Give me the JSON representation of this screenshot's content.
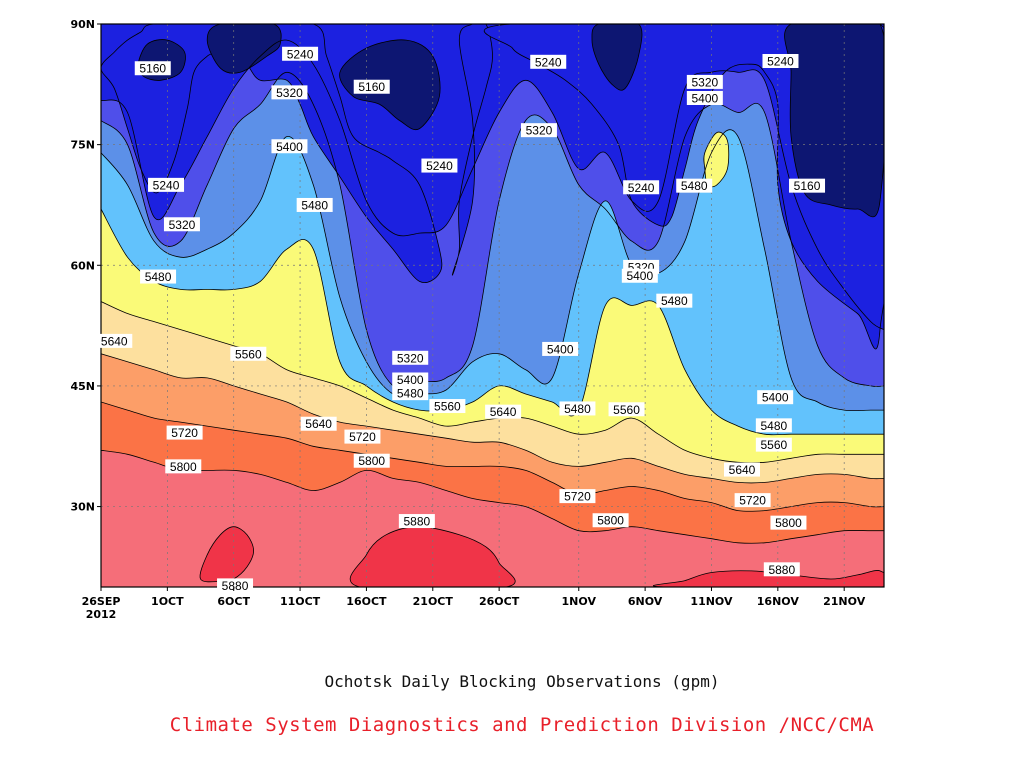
{
  "chart_data": {
    "type": "contour",
    "title": "Ochotsk Daily Blocking Observations (gpm)",
    "credit": "Climate System Diagnostics and Prediction Division /NCC/CMA",
    "credit_color": "#e8202a",
    "x_axis": {
      "range_days": [
        0,
        59
      ],
      "ticks": [
        {
          "label": "26SEP",
          "sub": "2012",
          "day": 0
        },
        {
          "label": "1OCT",
          "day": 5
        },
        {
          "label": "6OCT",
          "day": 10
        },
        {
          "label": "11OCT",
          "day": 15
        },
        {
          "label": "16OCT",
          "day": 20
        },
        {
          "label": "21OCT",
          "day": 25
        },
        {
          "label": "26OCT",
          "day": 30
        },
        {
          "label": "1NOV",
          "day": 36
        },
        {
          "label": "6NOV",
          "day": 41
        },
        {
          "label": "11NOV",
          "day": 46
        },
        {
          "label": "16NOV",
          "day": 51
        },
        {
          "label": "21NOV",
          "day": 56
        }
      ]
    },
    "y_axis": {
      "range": [
        20,
        90
      ],
      "ticks": [
        {
          "label": "30N",
          "value": 30
        },
        {
          "label": "45N",
          "value": 45
        },
        {
          "label": "60N",
          "value": 60
        },
        {
          "label": "75N",
          "value": 75
        },
        {
          "label": "90N",
          "value": 90
        }
      ]
    },
    "grid": "dotted",
    "contour_levels": [
      5240,
      5320,
      5400,
      5480,
      5560,
      5640,
      5720,
      5800,
      5880
    ],
    "fill_colors": [
      "#0d1672",
      "#1c21e0",
      "#4f4fea",
      "#5c90e8",
      "#62c2fc",
      "#fafa78",
      "#fde09e",
      "#fc9e68",
      "#fb7346",
      "#f56e79",
      "#f03448"
    ],
    "level_lats": {
      "days": [
        0,
        2,
        4,
        6,
        8,
        10,
        12,
        14,
        16,
        18,
        20,
        22,
        24,
        26,
        28,
        30,
        32,
        34,
        36,
        38,
        40,
        42,
        44,
        46,
        48,
        50,
        52,
        54,
        56,
        58,
        59
      ],
      "5320": [
        80.5,
        79,
        66,
        70,
        76,
        82,
        86,
        88,
        85,
        78,
        68,
        64,
        64,
        65,
        72,
        79,
        83,
        79,
        72,
        74,
        68,
        68,
        82,
        84,
        84,
        83,
        70,
        62,
        57,
        53,
        52
      ],
      "5400": [
        78,
        75,
        64,
        63,
        70,
        77,
        80,
        84,
        80,
        70,
        52,
        45,
        45.5,
        46,
        50,
        68,
        78,
        77,
        70,
        67,
        63,
        63,
        76,
        80,
        79,
        79,
        63,
        50,
        46,
        45,
        45
      ],
      "5480": [
        74,
        70,
        63,
        61,
        62,
        64,
        68,
        76,
        70,
        56,
        48,
        44,
        44,
        44.5,
        48,
        49,
        47,
        46,
        59,
        68,
        60,
        59,
        63,
        74,
        76,
        62,
        46,
        43,
        42,
        42,
        42
      ],
      "5560": [
        67,
        61,
        58,
        57,
        57,
        57,
        58,
        62,
        62,
        48,
        45,
        43,
        42,
        42,
        43,
        45,
        44,
        43,
        42,
        55,
        55,
        55,
        47,
        42,
        40,
        39,
        39,
        39,
        39,
        39,
        39
      ],
      "5640": [
        55.5,
        54,
        53,
        52,
        51,
        50,
        49,
        47,
        46,
        45,
        43.5,
        42,
        41,
        40,
        40.5,
        41,
        41,
        40,
        39,
        39.5,
        41,
        39,
        37,
        36,
        35.5,
        35.5,
        36,
        36.5,
        36.5,
        36.5,
        36.5
      ],
      "5720": [
        49,
        48,
        47,
        46,
        46,
        45,
        44,
        43,
        41.5,
        40.5,
        40,
        39.5,
        39,
        38.5,
        38,
        38,
        37,
        35.5,
        35,
        35.5,
        36,
        35,
        34,
        33.5,
        33,
        33,
        33.5,
        34,
        34,
        33.5,
        33.5
      ],
      "5800": [
        43,
        42,
        41,
        40.5,
        40,
        39.5,
        39,
        38.5,
        37.5,
        37,
        36.5,
        36,
        35.5,
        35,
        35,
        35,
        34.5,
        33,
        31.5,
        32,
        32.5,
        32,
        31,
        30.5,
        29.5,
        29.5,
        30,
        30.5,
        30.5,
        30,
        30
      ],
      "5880": [
        37,
        36.5,
        35.5,
        34.5,
        34.5,
        34.5,
        34,
        33,
        32,
        33,
        34.5,
        33.5,
        33,
        32,
        31,
        30.5,
        30,
        28.5,
        27,
        27,
        27.5,
        27,
        26.5,
        26,
        25.5,
        25.5,
        26,
        26.5,
        27,
        27,
        27
      ]
    },
    "lows_5240": [
      [
        [
          0,
          84.5
        ],
        [
          1,
          86.5
        ],
        [
          2,
          88
        ],
        [
          3,
          89
        ],
        [
          4,
          90
        ],
        [
          9,
          90
        ],
        [
          9,
          87
        ],
        [
          8,
          86
        ],
        [
          7,
          84
        ],
        [
          6.5,
          79.5
        ],
        [
          5.5,
          73
        ],
        [
          4.2,
          69
        ],
        [
          3,
          72
        ],
        [
          2,
          77
        ],
        [
          1,
          82
        ]
      ],
      [
        [
          10,
          90
        ],
        [
          16,
          90
        ],
        [
          17,
          86
        ],
        [
          18,
          81
        ],
        [
          19,
          76
        ],
        [
          21,
          74
        ],
        [
          22,
          73
        ],
        [
          24,
          70
        ],
        [
          25.5,
          62
        ],
        [
          25.5,
          59
        ],
        [
          24,
          58
        ],
        [
          22,
          62
        ],
        [
          20,
          66
        ],
        [
          18,
          71
        ],
        [
          16,
          76
        ],
        [
          15,
          80
        ],
        [
          14,
          83
        ],
        [
          12,
          83
        ],
        [
          11,
          85
        ],
        [
          10,
          87
        ]
      ],
      [
        [
          27,
          88
        ],
        [
          28,
          90
        ],
        [
          29,
          90
        ],
        [
          29.5,
          86
        ],
        [
          29,
          82
        ],
        [
          28,
          76
        ],
        [
          27,
          68
        ],
        [
          27,
          62
        ],
        [
          26.5,
          59
        ],
        [
          28,
          68
        ],
        [
          28,
          78
        ]
      ],
      [
        [
          31,
          90
        ],
        [
          58.7,
          90
        ],
        [
          58.7,
          52
        ],
        [
          57,
          54
        ],
        [
          54,
          58
        ],
        [
          52,
          63
        ],
        [
          51,
          70
        ],
        [
          51,
          80
        ],
        [
          50,
          84
        ],
        [
          49,
          85
        ],
        [
          47,
          84
        ],
        [
          45,
          78
        ],
        [
          44,
          72
        ],
        [
          43,
          66
        ],
        [
          42,
          65
        ],
        [
          40,
          68
        ],
        [
          39,
          75
        ],
        [
          37,
          80
        ],
        [
          35,
          83
        ],
        [
          33,
          85
        ],
        [
          31,
          87
        ]
      ]
    ],
    "lows_5160": [
      [
        [
          2.8,
          85
        ],
        [
          3.5,
          87.5
        ],
        [
          5,
          88
        ],
        [
          6.3,
          86.5
        ],
        [
          6,
          84
        ],
        [
          4.5,
          83
        ],
        [
          3.2,
          83.5
        ]
      ],
      [
        [
          8,
          88
        ],
        [
          9,
          90
        ],
        [
          13,
          90
        ],
        [
          13.5,
          87.5
        ],
        [
          12.5,
          86
        ],
        [
          10.5,
          84
        ],
        [
          9,
          84.5
        ]
      ],
      [
        [
          18,
          84
        ],
        [
          20,
          87
        ],
        [
          23,
          88
        ],
        [
          25,
          86
        ],
        [
          25.5,
          81
        ],
        [
          24,
          77
        ],
        [
          22.5,
          78
        ],
        [
          21,
          80
        ],
        [
          19,
          81
        ]
      ],
      [
        [
          37,
          88
        ],
        [
          37.5,
          90
        ],
        [
          40.5,
          90
        ],
        [
          40.5,
          86
        ],
        [
          39.5,
          82
        ],
        [
          38.5,
          82.5
        ],
        [
          37.5,
          85
        ]
      ],
      [
        [
          52,
          90
        ],
        [
          58.7,
          90
        ],
        [
          58.7,
          68
        ],
        [
          57,
          67
        ],
        [
          55,
          67.5
        ],
        [
          53,
          69
        ],
        [
          52,
          76
        ],
        [
          52,
          84
        ]
      ]
    ],
    "high_5480_bubble": [
      [
        45.5,
        72
      ],
      [
        45.5,
        74
      ],
      [
        46.4,
        76.5
      ],
      [
        47.2,
        75.5
      ],
      [
        47.2,
        72
      ],
      [
        46.4,
        70
      ],
      [
        45.7,
        70
      ]
    ],
    "high_5960_pockets": [
      [
        [
          7.5,
          21
        ],
        [
          8,
          24
        ],
        [
          9,
          26.5
        ],
        [
          10,
          27.5
        ],
        [
          11,
          26.5
        ],
        [
          11.5,
          24.5
        ],
        [
          11,
          22.5
        ],
        [
          10,
          21
        ],
        [
          9,
          20.7
        ]
      ],
      [
        [
          19.5,
          20
        ],
        [
          20,
          24
        ],
        [
          21.5,
          26.5
        ],
        [
          24,
          27.5
        ],
        [
          27,
          26.5
        ],
        [
          29,
          25
        ],
        [
          30,
          23
        ],
        [
          30.5,
          20
        ]
      ],
      [
        [
          42.5,
          20
        ],
        [
          44,
          20.8
        ],
        [
          46,
          21.8
        ],
        [
          49,
          22
        ],
        [
          52,
          21.5
        ],
        [
          55,
          21
        ],
        [
          57,
          21.5
        ],
        [
          58.7,
          22
        ],
        [
          58.7,
          20
        ]
      ]
    ],
    "contour_labels": [
      {
        "text": "5160",
        "day": 3.9,
        "lat": 84.5
      },
      {
        "text": "5240",
        "day": 15,
        "lat": 86.3
      },
      {
        "text": "5320",
        "day": 14.2,
        "lat": 81.5
      },
      {
        "text": "5160",
        "day": 20.4,
        "lat": 82.2
      },
      {
        "text": "5240",
        "day": 33.7,
        "lat": 85.3
      },
      {
        "text": "5320",
        "day": 45.5,
        "lat": 82.8
      },
      {
        "text": "5240",
        "day": 51.2,
        "lat": 85.4
      },
      {
        "text": "5400",
        "day": 45.5,
        "lat": 80.8
      },
      {
        "text": "5320",
        "day": 33,
        "lat": 76.8
      },
      {
        "text": "5400",
        "day": 14.2,
        "lat": 74.8
      },
      {
        "text": "5240",
        "day": 25.5,
        "lat": 72.4
      },
      {
        "text": "5240",
        "day": 4.9,
        "lat": 70
      },
      {
        "text": "5240",
        "day": 40.7,
        "lat": 69.7
      },
      {
        "text": "5480",
        "day": 44.7,
        "lat": 69.9
      },
      {
        "text": "5160",
        "day": 53.2,
        "lat": 69.9
      },
      {
        "text": "5480",
        "day": 16.1,
        "lat": 67.5
      },
      {
        "text": "5320",
        "day": 6.1,
        "lat": 65.1
      },
      {
        "text": "5320",
        "day": 40.7,
        "lat": 59.8
      },
      {
        "text": "5400",
        "day": 40.6,
        "lat": 58.7
      },
      {
        "text": "5480",
        "day": 4.3,
        "lat": 58.6
      },
      {
        "text": "5480",
        "day": 43.2,
        "lat": 55.6
      },
      {
        "text": "5640",
        "day": 1,
        "lat": 50.6
      },
      {
        "text": "5400",
        "day": 34.6,
        "lat": 49.6
      },
      {
        "text": "5560",
        "day": 11.1,
        "lat": 49
      },
      {
        "text": "5320",
        "day": 23.3,
        "lat": 48.5
      },
      {
        "text": "5400",
        "day": 23.3,
        "lat": 45.8
      },
      {
        "text": "5480",
        "day": 23.3,
        "lat": 44.1
      },
      {
        "text": "5400",
        "day": 50.8,
        "lat": 43.6
      },
      {
        "text": "5560",
        "day": 26.1,
        "lat": 42.5
      },
      {
        "text": "5480",
        "day": 35.9,
        "lat": 42.2
      },
      {
        "text": "5560",
        "day": 39.6,
        "lat": 42.1
      },
      {
        "text": "5640",
        "day": 30.3,
        "lat": 41.8
      },
      {
        "text": "5480",
        "day": 50.7,
        "lat": 40.1
      },
      {
        "text": "5640",
        "day": 16.4,
        "lat": 40.3
      },
      {
        "text": "5720",
        "day": 6.3,
        "lat": 39.2
      },
      {
        "text": "5720",
        "day": 19.7,
        "lat": 38.7
      },
      {
        "text": "5560",
        "day": 50.7,
        "lat": 37.7
      },
      {
        "text": "5800",
        "day": 6.2,
        "lat": 35
      },
      {
        "text": "5800",
        "day": 20.4,
        "lat": 35.7
      },
      {
        "text": "5640",
        "day": 48.3,
        "lat": 34.6
      },
      {
        "text": "5720",
        "day": 35.9,
        "lat": 31.3
      },
      {
        "text": "5720",
        "day": 49.1,
        "lat": 30.8
      },
      {
        "text": "5800",
        "day": 38.4,
        "lat": 28.3
      },
      {
        "text": "5800",
        "day": 51.8,
        "lat": 28
      },
      {
        "text": "5880",
        "day": 23.8,
        "lat": 28.2
      },
      {
        "text": "5880",
        "day": 51.3,
        "lat": 22.2
      },
      {
        "text": "5880",
        "day": 10.1,
        "lat": 20.2
      }
    ]
  }
}
